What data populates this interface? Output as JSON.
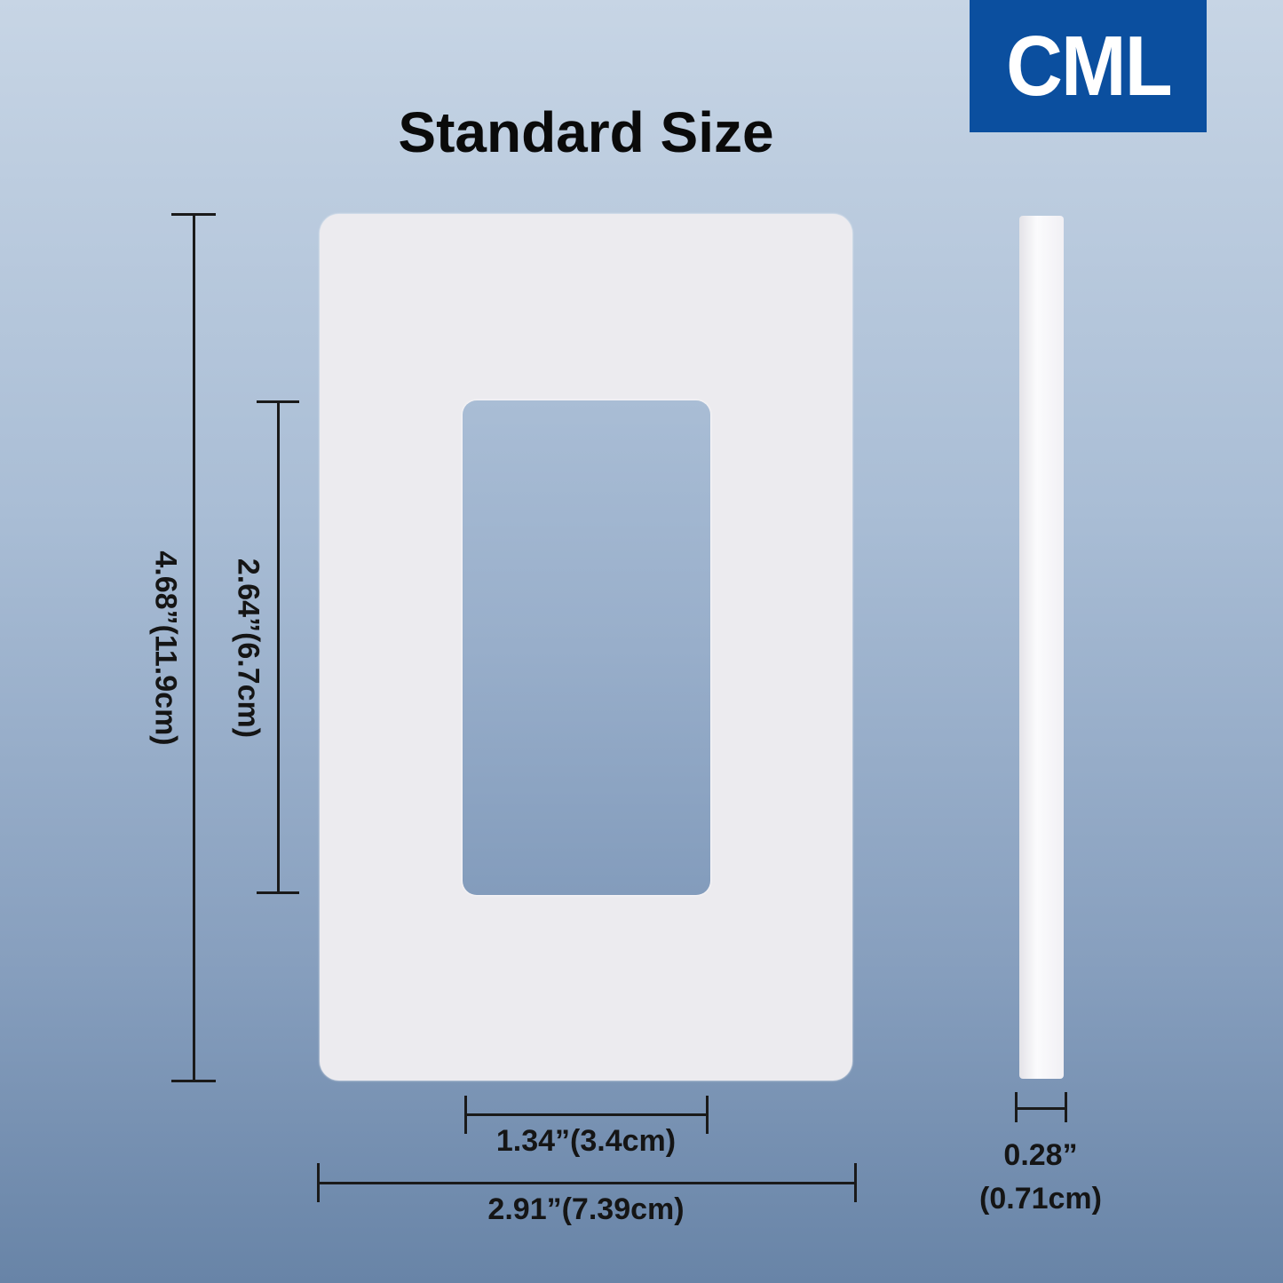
{
  "title": "Standard Size",
  "logo": {
    "text": "CML",
    "color": "#0b4f9f"
  },
  "dimensions": {
    "overall_height": "4.68”(11.9cm)",
    "opening_height": "2.64”(6.7cm)",
    "opening_width": "1.34”(3.4cm)",
    "overall_width": "2.91”(7.39cm)",
    "thickness_in": "0.28”",
    "thickness_cm": "(0.71cm)"
  }
}
